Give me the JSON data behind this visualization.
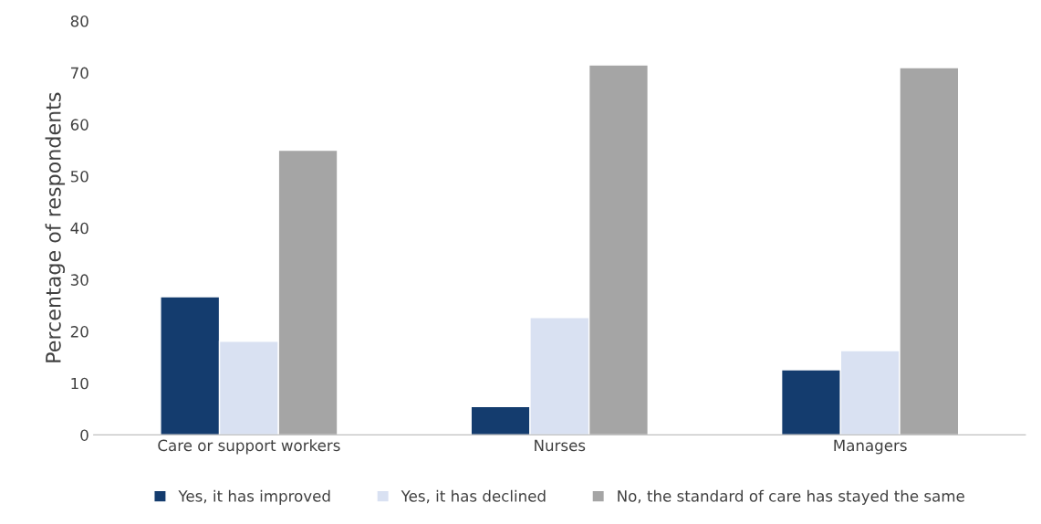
{
  "chart_data": {
    "type": "bar",
    "ylabel": "Percentage of respondents",
    "categories": [
      "Care or support workers",
      "Nurses",
      "Managers"
    ],
    "series": [
      {
        "name": "Yes, it has improved",
        "color": "#143c6e",
        "values": [
          26.7,
          5.5,
          12.6
        ]
      },
      {
        "name": "Yes, it has declined",
        "color": "#d9e1f2",
        "values": [
          18.1,
          22.7,
          16.3
        ]
      },
      {
        "name": "No, the standard of care has stayed the same",
        "color": "#a5a5a5",
        "values": [
          55.0,
          71.5,
          71.0
        ]
      }
    ],
    "ylim": [
      0,
      80
    ],
    "yticks": [
      0,
      10,
      20,
      30,
      40,
      50,
      60,
      70,
      80
    ],
    "grid": false,
    "legend": "bottom"
  }
}
